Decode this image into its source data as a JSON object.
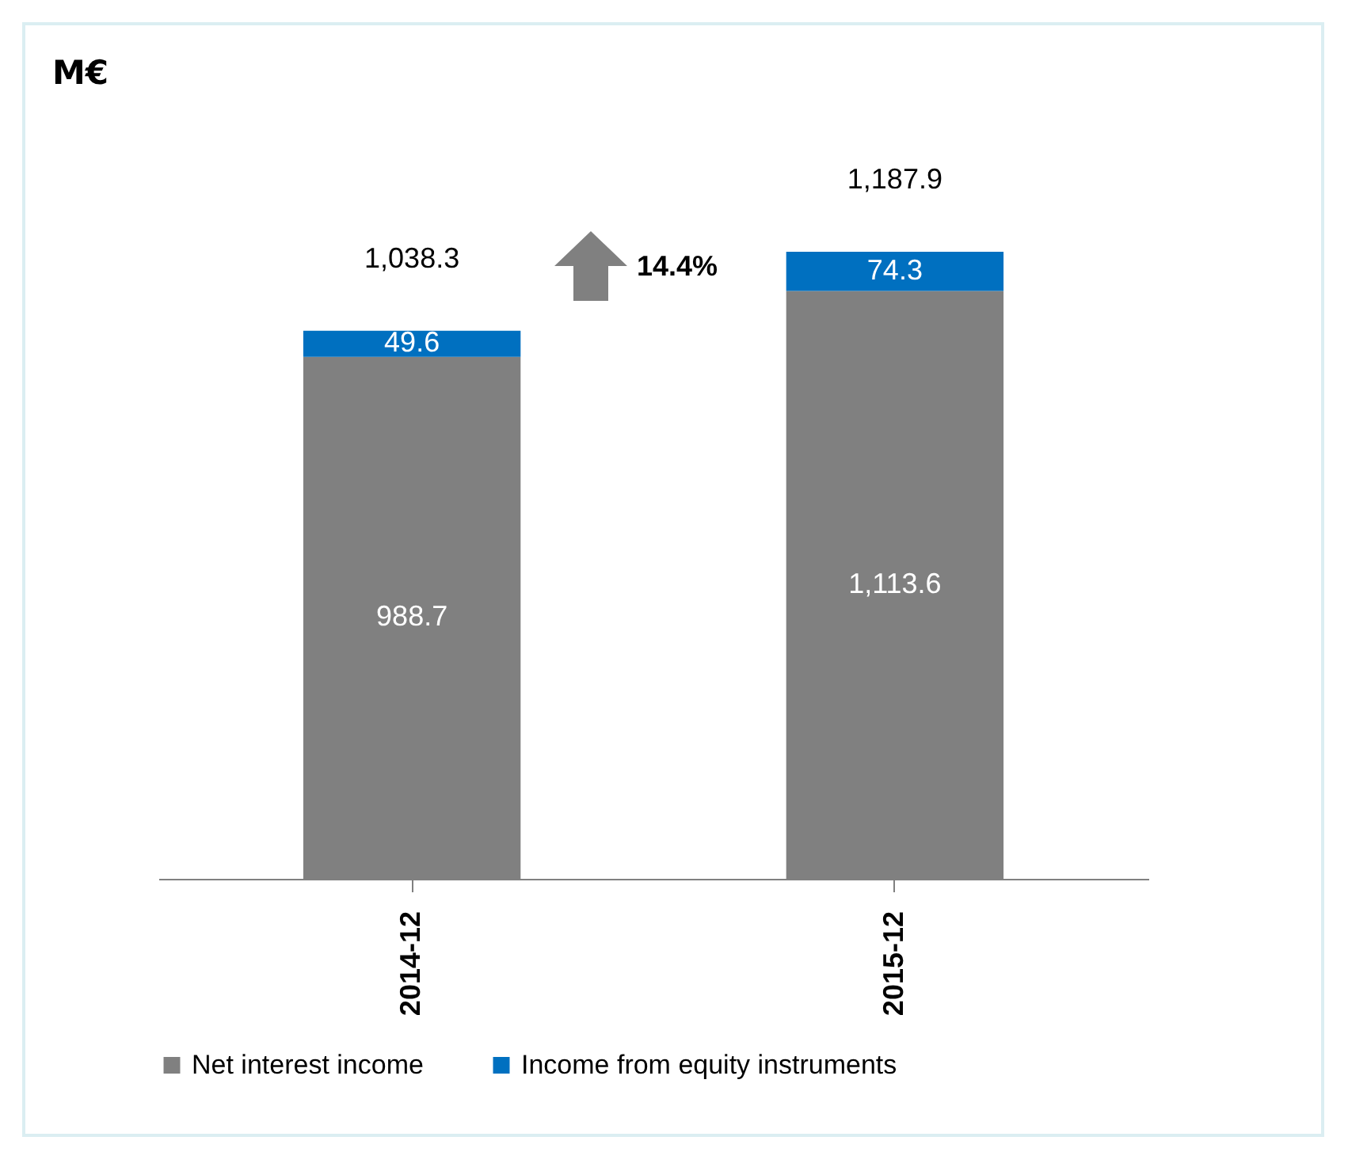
{
  "chart_data": {
    "type": "bar",
    "title": "M€",
    "categories": [
      "2014-12",
      "2015-12"
    ],
    "stacked": true,
    "legend": "bottom",
    "series": [
      {
        "name": "Net interest income",
        "color": "#808080",
        "values": [
          988.7,
          1113.6
        ],
        "value_labels": [
          "988.7",
          "1,113.6"
        ]
      },
      {
        "name": "Income from equity instruments",
        "color": "#0070c0",
        "values": [
          49.6,
          74.3
        ],
        "value_labels": [
          "49.6",
          "74.3"
        ]
      }
    ],
    "totals": [
      "1,038.3",
      "1,187.9"
    ],
    "annotations": [
      "14.4%"
    ]
  }
}
